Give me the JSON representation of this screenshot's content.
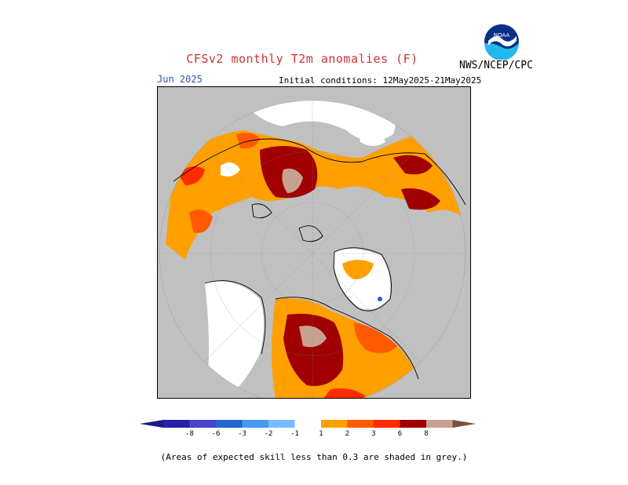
{
  "header": {
    "title": "CFSv2 monthly T2m anomalies (F)",
    "month": "Jun 2025",
    "initial_conditions": "Initial conditions: 12May2025-21May2025",
    "organization": "NWS/NCEP/CPC",
    "logo_text": "NOAA"
  },
  "colors": {
    "title": "#cc3333",
    "month": "#3355aa",
    "grey_no_skill": "#c0c0c0",
    "ocean_white": "#ffffff"
  },
  "legend": {
    "neg_labels": [
      "-8",
      "-6",
      "-3",
      "-2",
      "-1"
    ],
    "pos_labels": [
      "1",
      "2",
      "3",
      "6",
      "8"
    ],
    "neg_colors": [
      "#2222aa",
      "#4444cc",
      "#2266cc",
      "#4499ee",
      "#77bbff"
    ],
    "neutral_color": "#ffffff",
    "pos_colors": [
      "#ffa000",
      "#ff5a00",
      "#ff2a00",
      "#a00000",
      "#c8a090"
    ],
    "end_low": "#1a1a88",
    "end_high": "#7a5040"
  },
  "footer": {
    "note": "(Areas of expected skill less than 0.3 are shaded in grey.)"
  }
}
